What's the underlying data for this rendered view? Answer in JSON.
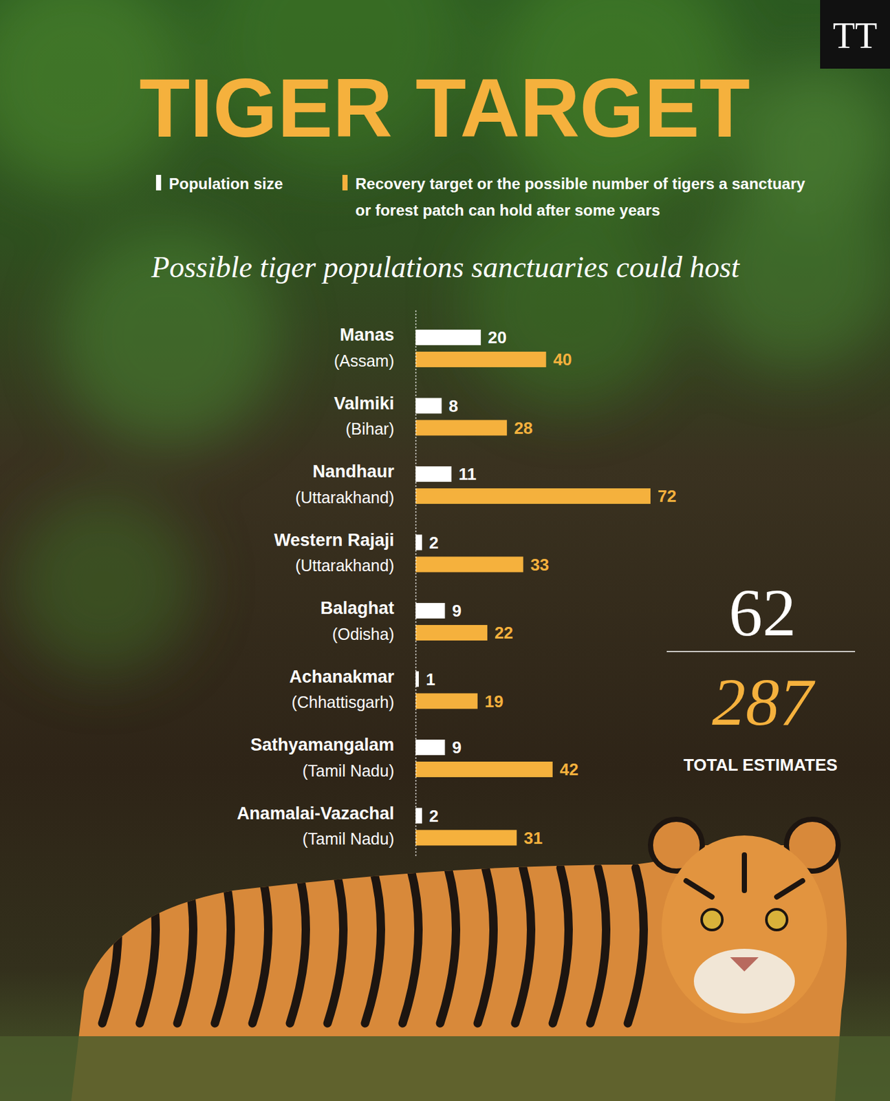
{
  "chart_data": {
    "type": "bar",
    "orientation": "horizontal",
    "title": "TIGER TARGET",
    "subtitle": "Possible tiger populations sanctuaries could host",
    "logo": "TT",
    "categories": [
      "Manas",
      "Valmiki",
      "Nandhaur",
      "Western Rajaji",
      "Balaghat",
      "Achanakmar",
      "Sathyamangalam",
      "Anamalai-Vazachal"
    ],
    "category_regions": [
      "(Assam)",
      "(Bihar)",
      "(Uttarakhand)",
      "(Uttarakhand)",
      "(Odisha)",
      "(Chhattisgarh)",
      "(Tamil Nadu)",
      "(Tamil Nadu)"
    ],
    "series": [
      {
        "name": "Population size",
        "color": "#ffffff",
        "values": [
          20,
          8,
          11,
          2,
          9,
          1,
          9,
          2
        ]
      },
      {
        "name": "Recovery target or the possible number of tigers a sanctuary or forest patch can hold after some years",
        "color": "#f5b13d",
        "values": [
          40,
          28,
          72,
          33,
          22,
          19,
          42,
          31
        ]
      }
    ],
    "xlim": [
      0,
      72
    ],
    "tick_labels": "y",
    "data_labels": true,
    "legend": "top",
    "totals": {
      "values": [
        62,
        287
      ],
      "label": "TOTAL ESTIMATES"
    }
  }
}
